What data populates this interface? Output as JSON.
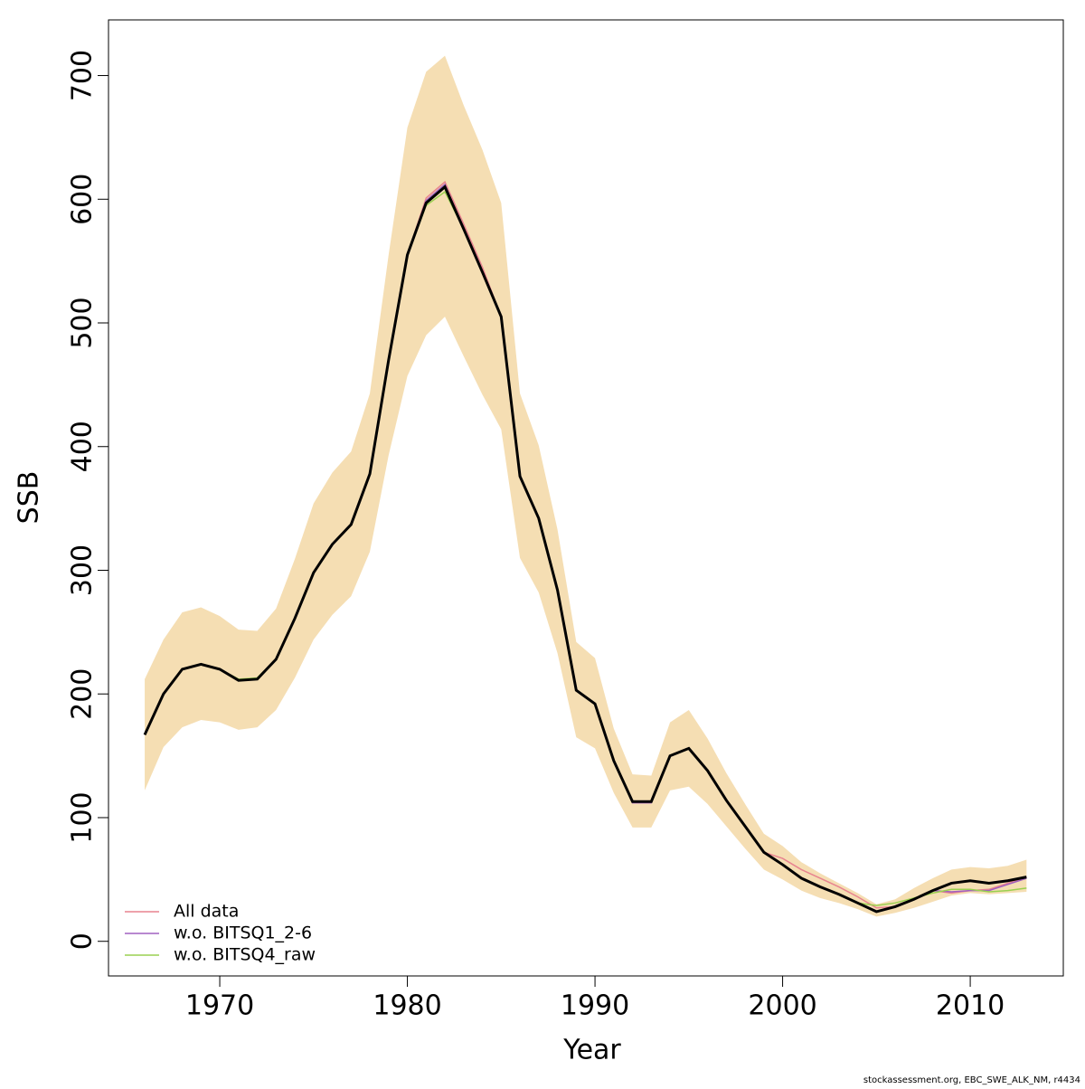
{
  "chart_data": {
    "type": "line",
    "xlabel": "Year",
    "ylabel": "SSB",
    "footer": "stockassessment.org, EBC_SWE_ALK_NM, r4434",
    "x": [
      1966,
      1967,
      1968,
      1969,
      1970,
      1971,
      1972,
      1973,
      1974,
      1975,
      1976,
      1977,
      1978,
      1979,
      1980,
      1981,
      1982,
      1983,
      1984,
      1985,
      1986,
      1987,
      1988,
      1989,
      1990,
      1991,
      1992,
      1993,
      1994,
      1995,
      1996,
      1997,
      1998,
      1999,
      2000,
      2001,
      2002,
      2003,
      2004,
      2005,
      2006,
      2007,
      2008,
      2009,
      2010,
      2011,
      2012,
      2013
    ],
    "band": {
      "color": "#f5deb3",
      "upper": [
        212,
        244,
        266,
        270,
        263,
        252,
        251,
        269,
        309,
        354,
        379,
        396,
        443,
        555,
        658,
        703,
        716,
        676,
        640,
        597,
        443,
        401,
        333,
        242,
        229,
        172,
        135,
        134,
        177,
        187,
        164,
        136,
        111,
        87,
        77,
        64,
        55,
        47,
        39,
        30,
        34,
        43,
        51,
        58,
        60,
        59,
        61,
        66
      ],
      "lower": [
        122,
        157,
        173,
        179,
        177,
        171,
        173,
        187,
        213,
        244,
        264,
        279,
        315,
        393,
        457,
        490,
        505,
        473,
        442,
        414,
        310,
        282,
        233,
        165,
        156,
        120,
        92,
        92,
        122,
        125,
        111,
        93,
        75,
        58,
        50,
        41,
        35,
        31,
        26,
        20,
        23,
        27,
        32,
        37,
        39,
        38,
        39,
        40
      ]
    },
    "series": [
      {
        "name": "All data",
        "color": "#e8838f",
        "values": [
          167,
          200,
          220,
          224,
          220,
          211,
          212,
          228,
          261,
          298,
          321,
          337,
          378,
          470,
          555,
          601,
          614,
          580,
          545,
          505,
          376,
          342,
          284,
          203,
          192,
          146,
          113,
          113,
          150,
          156,
          138,
          114,
          93,
          72,
          67,
          58,
          51,
          44,
          36,
          27,
          28,
          34,
          41,
          39,
          41,
          42,
          47,
          52
        ]
      },
      {
        "name": "w.o. BITSQ1_2-6",
        "color": "#a060c0",
        "values": [
          167,
          200,
          220,
          224,
          220,
          211,
          212,
          228,
          261,
          298,
          321,
          337,
          378,
          470,
          555,
          599,
          612,
          576,
          541,
          505,
          376,
          342,
          284,
          203,
          192,
          146,
          112,
          112,
          150,
          156,
          138,
          114,
          93,
          72,
          62,
          51,
          44,
          38,
          31,
          24,
          28,
          34,
          41,
          40,
          41,
          41,
          46,
          51
        ]
      },
      {
        "name": "w.o. BITSQ4_raw",
        "color": "#9ad050",
        "values": [
          167,
          200,
          220,
          224,
          220,
          212,
          213,
          228,
          261,
          298,
          321,
          337,
          378,
          470,
          555,
          595,
          606,
          576,
          541,
          505,
          376,
          342,
          284,
          203,
          192,
          146,
          113,
          113,
          150,
          156,
          138,
          114,
          93,
          72,
          62,
          51,
          44,
          38,
          31,
          29,
          31,
          35,
          39,
          42,
          42,
          40,
          41,
          43
        ]
      }
    ],
    "estimate": {
      "color": "#000000",
      "values": [
        167,
        200,
        220,
        224,
        220,
        211,
        212,
        228,
        261,
        298,
        321,
        337,
        378,
        470,
        555,
        597,
        610,
        576,
        541,
        505,
        376,
        342,
        284,
        203,
        192,
        146,
        113,
        113,
        150,
        156,
        138,
        114,
        93,
        72,
        62,
        51,
        44,
        38,
        31,
        24,
        28,
        34,
        41,
        47,
        49,
        47,
        49,
        52
      ]
    },
    "xlim": [
      1964.07,
      2014.96
    ],
    "ylim": [
      -28,
      745
    ],
    "xticks": [
      1970,
      1980,
      1990,
      2000,
      2010
    ],
    "yticks": [
      0,
      100,
      200,
      300,
      400,
      500,
      600,
      700
    ],
    "legend": "bottom-left"
  }
}
